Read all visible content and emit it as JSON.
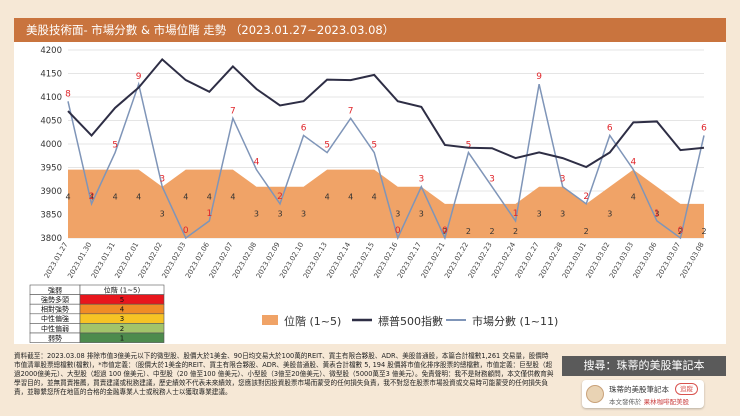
{
  "header": {
    "title": "美股技術面- 市場分數 & 市場位階 走勢 （2023.01.27~2023.03.08）"
  },
  "chart_data": {
    "type": "line",
    "title": "美股技術面- 市場分數 & 市場位階 走勢 （2023.01.27~2023.03.08）",
    "categories": [
      "2023.01.27",
      "2023.01.30",
      "2023.01.31",
      "2023.02.01",
      "2023.02.02",
      "2023.02.03",
      "2023.02.06",
      "2023.02.07",
      "2023.02.08",
      "2023.02.09",
      "2023.02.10",
      "2023.02.13",
      "2023.02.14",
      "2023.02.15",
      "2023.02.16",
      "2023.02.17",
      "2023.02.21",
      "2023.02.22",
      "2023.02.23",
      "2023.02.24",
      "2023.02.27",
      "2023.02.28",
      "2023.03.01",
      "2023.03.02",
      "2023.03.03",
      "2023.03.06",
      "2023.03.07",
      "2023.03.08"
    ],
    "ylim": [
      3800,
      4200
    ],
    "yticks": [
      3800,
      3850,
      3900,
      3950,
      4000,
      4050,
      4100,
      4150,
      4200
    ],
    "series": [
      {
        "name": "位階 (1~5)",
        "kind": "area",
        "color": "#f0a367",
        "values": [
          4,
          4,
          4,
          4,
          3,
          4,
          4,
          4,
          3,
          3,
          3,
          4,
          4,
          4,
          3,
          3,
          2,
          2,
          2,
          2,
          3,
          3,
          2,
          3,
          4,
          3,
          2,
          2
        ]
      },
      {
        "name": "標普500指數",
        "kind": "line",
        "color": "#2e2e45",
        "values": [
          4070,
          4018,
          4077,
          4120,
          4180,
          4136,
          4111,
          4165,
          4117,
          4082,
          4091,
          4137,
          4136,
          4147,
          4091,
          4079,
          3998,
          3992,
          3991,
          3970,
          3982,
          3970,
          3951,
          3982,
          4046,
          4048,
          3987,
          3992
        ]
      },
      {
        "name": "市場分數 (1~11)",
        "kind": "line",
        "color": "#7f95b8",
        "values": [
          8,
          2,
          5,
          9,
          3,
          0,
          1,
          7,
          4,
          2,
          6,
          5,
          7,
          5,
          0,
          3,
          0,
          5,
          3,
          1,
          9,
          3,
          2,
          6,
          4,
          1,
          0,
          6
        ]
      }
    ],
    "legend": [
      "位階 (1~5)",
      "標普500指數",
      "市場分數 (1~11)"
    ]
  },
  "legend_table": {
    "headers": [
      "強弱",
      "位階 (1~5)"
    ],
    "rows": [
      {
        "label": "強勢多頭",
        "value": "5",
        "color": "#e8161d"
      },
      {
        "label": "相對強勢",
        "value": "4",
        "color": "#f08c26"
      },
      {
        "label": "中性偏強",
        "value": "3",
        "color": "#f7c325"
      },
      {
        "label": "中性偏弱",
        "value": "2",
        "color": "#a3c46a"
      },
      {
        "label": "弱勢",
        "value": "1",
        "color": "#4d8b4d"
      }
    ]
  },
  "footer": {
    "text": "資料截至：2023.03.08 排除市值3億美元以下的微型股、股價大於1美金、90日均交易大於100萬的REIT、買主有限合夥股、ADR、美股普通股，本篇合計檔數1,261 交易量，股價時市值清單股票總檔數(檔數)，*市值定義：（股價大於1美金的REIT、買主有限合夥股、ADR、美股普通股、黃表合計檔數 5, 194 股價將市值化排序股票的總檔數，市值定義：巨型股（超過2000億美元）、大型股（超過 100 億美元）、中型股（20 億至100 億美元）、小型股（3億至20億美元）、微型股（5000萬至3 億美元）。免責聲明：我不是財務顧問，本文僅供教育與學習目的，並無買賣推薦，買賣建議或稅務建議，歷史績效不代表未來績效，您應該對因投資股票市場而蒙受的任何損失負責，我不對您在股票市場投資或交易時可能蒙受的任何損失負責，並聯繫您所在地區的合格的金融專業人士或稅務人士以獲取專業建議。"
  },
  "sidebar": {
    "search_label": "搜尋：珠蒂的美股筆記本",
    "card_name": "珠蒂的美股筆記本",
    "follow_label": "追蹤",
    "publisher_prefix": "本文發佈於",
    "publisher_name": "果林咖啡配美股"
  }
}
